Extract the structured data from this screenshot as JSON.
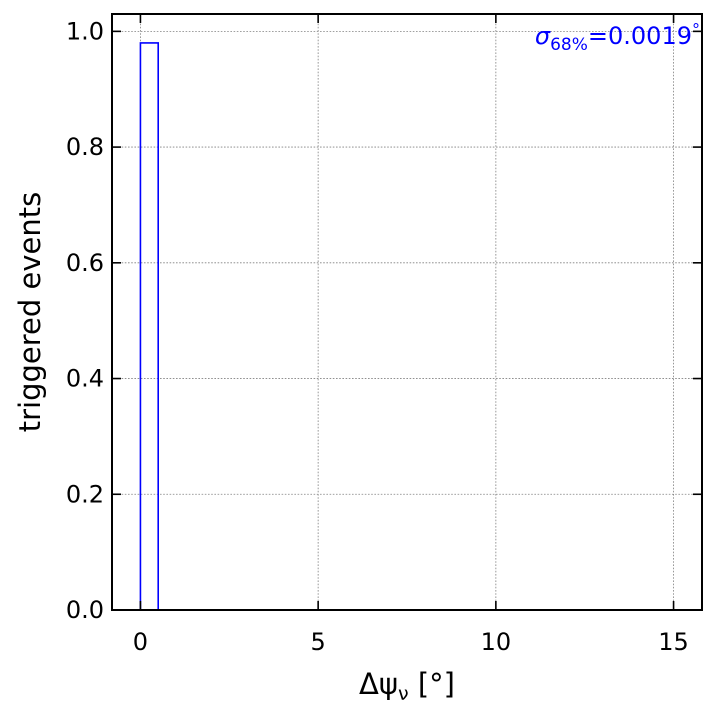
{
  "chart_data": {
    "type": "bar",
    "ylabel": "triggered events",
    "xlabel_delta": "Δψ",
    "xlabel_sub": "ν",
    "xlabel_unit": " [°]",
    "xlim": [
      -0.8,
      15.8
    ],
    "ylim": [
      0,
      1.03
    ],
    "xticks": [
      0,
      5,
      10,
      15
    ],
    "yticks": [
      0.0,
      0.2,
      0.4,
      0.6,
      0.8,
      1.0
    ],
    "xtick_labels": [
      "0",
      "5",
      "10",
      "15"
    ],
    "ytick_labels": [
      "0.0",
      "0.2",
      "0.4",
      "0.6",
      "0.8",
      "1.0"
    ],
    "grid": true,
    "bins": [
      {
        "x0": 0.0,
        "x1": 0.5,
        "value": 0.98
      }
    ],
    "annotation": {
      "symbol": "σ",
      "sub": "68%",
      "value_text": "=0.0019",
      "unit": "°"
    },
    "colors": {
      "series": "#0000ff",
      "grid": "#808080",
      "axes": "#000000"
    }
  }
}
